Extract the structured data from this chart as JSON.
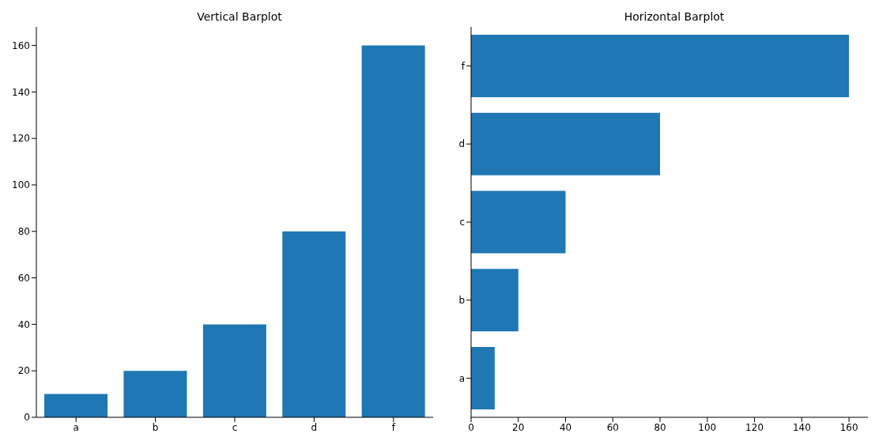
{
  "chart_data": [
    {
      "type": "bar",
      "title": "Vertical Barplot",
      "categories": [
        "a",
        "b",
        "c",
        "d",
        "f"
      ],
      "values": [
        10,
        20,
        40,
        80,
        160
      ],
      "color": "#1f77b4",
      "ylim": [
        0,
        168
      ],
      "yticks": [
        0,
        20,
        40,
        60,
        80,
        100,
        120,
        140,
        160
      ]
    },
    {
      "type": "bar",
      "title": "Horizontal Barplot",
      "orientation": "horizontal",
      "categories": [
        "f",
        "d",
        "c",
        "b",
        "a"
      ],
      "values": [
        160,
        80,
        40,
        20,
        10
      ],
      "color": "#1f77b4",
      "xlim": [
        0,
        168
      ],
      "xticks": [
        0,
        20,
        40,
        60,
        80,
        100,
        120,
        140,
        160
      ]
    }
  ]
}
